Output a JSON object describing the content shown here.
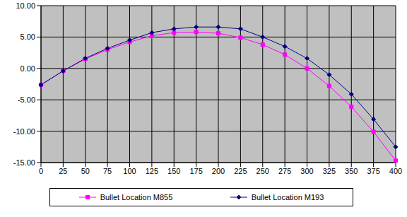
{
  "chart_data": {
    "type": "line",
    "categories": [
      "0",
      "25",
      "50",
      "75",
      "100",
      "125",
      "150",
      "175",
      "200",
      "225",
      "250",
      "275",
      "300",
      "325",
      "350",
      "375",
      "400"
    ],
    "series": [
      {
        "name": "Bullet Location M855",
        "color": "#ff00ff",
        "marker": "square",
        "values": [
          -2.6,
          -0.4,
          1.5,
          3.0,
          4.2,
          5.2,
          5.7,
          5.8,
          5.6,
          4.9,
          3.8,
          2.2,
          0.0,
          -2.8,
          -6.1,
          -10.1,
          -14.7
        ]
      },
      {
        "name": "Bullet Location M193",
        "color": "#000080",
        "marker": "diamond",
        "values": [
          -2.6,
          -0.4,
          1.6,
          3.2,
          4.5,
          5.7,
          6.3,
          6.6,
          6.6,
          6.3,
          5.0,
          3.5,
          1.6,
          -1.0,
          -4.1,
          -8.1,
          -12.5
        ]
      }
    ],
    "ylim": [
      -15,
      10
    ],
    "yticks": [
      {
        "value": -15,
        "label": "-15.00"
      },
      {
        "value": -10,
        "label": "-10.00"
      },
      {
        "value": -5,
        "label": "-5.00"
      },
      {
        "value": 0,
        "label": "0.00"
      },
      {
        "value": 5,
        "label": "5.00"
      },
      {
        "value": 10,
        "label": "10.00"
      }
    ],
    "grid": true,
    "legend": "bottom"
  }
}
